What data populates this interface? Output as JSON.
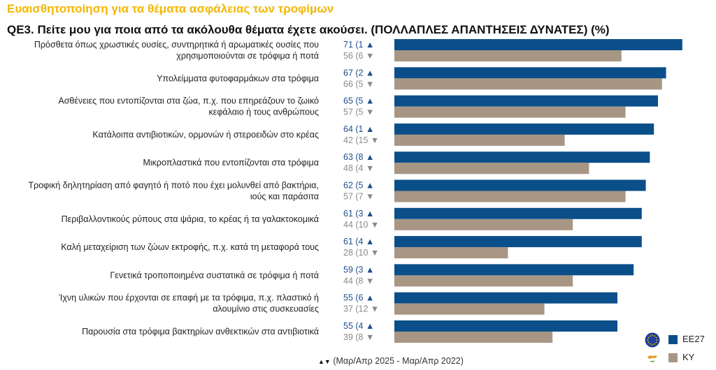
{
  "header": {
    "top_title": "Ευαισθητοποίηση για τα θέματα ασφάλειας των τροφίμων",
    "question": "QE3. Πείτε μου για ποια από τα ακόλουθα θέματα έχετε ακούσει. (ΠΟΛΛΑΠΛΕΣ ΑΠΑΝΤΗΣΕΙΣ ΔΥΝΑΤΕΣ) (%)"
  },
  "legend": {
    "eu_label": "EE27",
    "cy_label": "KY",
    "eu_icon": "eu-flag-icon",
    "cy_icon": "cyprus-flag-icon"
  },
  "footnote": {
    "arrows": "▲▼",
    "text": "(Μαρ/Απρ 2025 - Μαρ/Απρ 2022)"
  },
  "colors": {
    "eu": "#0b4f8a",
    "cy": "#a89684",
    "arrow_eu": "#1f4e8c",
    "arrow_cy": "#8a8a8a"
  },
  "chart_data": {
    "type": "bar",
    "orientation": "horizontal",
    "xlim": [
      0,
      75
    ],
    "categories": [
      [
        "Πρόσθετα όπως χρωστικές ουσίες, συντηρητικά ή αρωματικές ουσίες που",
        "χρησιμοποιούνται σε τρόφιμα ή ποτά"
      ],
      [
        "Υπολείμματα φυτοφαρμάκων στα τρόφιμα"
      ],
      [
        "Ασθένειες που εντοπίζονται στα ζώα, π.χ. που επηρεάζουν το ζωικό",
        "κεφάλαιο ή τους ανθρώπους"
      ],
      [
        "Κατάλοιπα αντιβιοτικών, ορμονών ή στεροειδών στο κρέας"
      ],
      [
        "Μικροπλαστικά που εντοπίζονται στα τρόφιμα"
      ],
      [
        "Τροφική δηλητηρίαση από φαγητό ή ποτό που έχει μολυνθεί από βακτήρια,",
        "ιούς και παράσιτα"
      ],
      [
        "Περιβαλλοντικούς ρύπους στα ψάρια, το κρέας ή τα γαλακτοκομικά"
      ],
      [
        "Καλή μεταχείριση των ζώων εκτροφής, π.χ. κατά τη μεταφορά τους"
      ],
      [
        "Γενετικά τροποποιημένα συστατικά σε τρόφιμα ή ποτά"
      ],
      [
        "Ίχνη υλικών που έρχονται σε επαφή με τα τρόφιμα, π.χ. πλαστικό ή",
        "αλουμίνιο στις συσκευασίες"
      ],
      [
        "Παρουσία στα τρόφιμα βακτηρίων ανθεκτικών στα αντιβιοτικά"
      ]
    ],
    "series": [
      {
        "name": "EE27",
        "values": [
          71,
          67,
          65,
          64,
          63,
          62,
          61,
          61,
          59,
          55,
          55
        ],
        "changes": [
          1,
          2,
          5,
          1,
          8,
          5,
          3,
          4,
          3,
          6,
          4
        ],
        "directions": [
          "up",
          "up",
          "up",
          "up",
          "up",
          "up",
          "up",
          "up",
          "up",
          "up",
          "up"
        ]
      },
      {
        "name": "KY",
        "values": [
          56,
          66,
          57,
          42,
          48,
          57,
          44,
          28,
          44,
          37,
          39
        ],
        "changes": [
          6,
          5,
          5,
          15,
          4,
          7,
          10,
          10,
          8,
          12,
          8
        ],
        "directions": [
          "down",
          "down",
          "down",
          "down",
          "down",
          "down",
          "down",
          "down",
          "down",
          "down",
          "down"
        ]
      }
    ]
  }
}
